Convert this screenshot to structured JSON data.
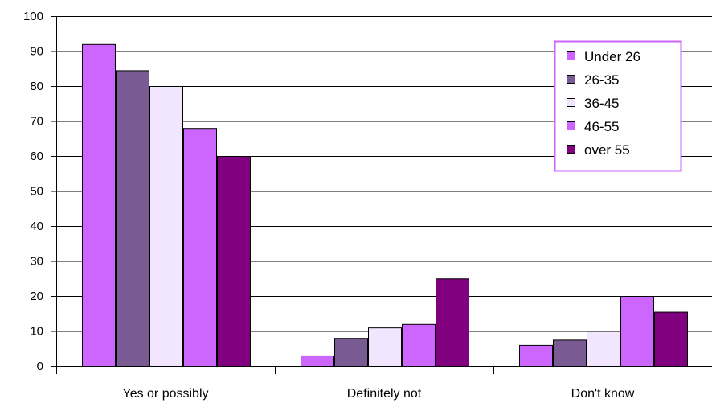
{
  "chart_data": {
    "type": "bar",
    "title": "",
    "xlabel": "",
    "ylabel": "",
    "categories": [
      "Yes or possibly",
      "Definitely not",
      "Don't know"
    ],
    "ylim": [
      0,
      100
    ],
    "yticks": [
      "0",
      "10",
      "20",
      "30",
      "40",
      "50",
      "60",
      "70",
      "80",
      "90",
      "100"
    ],
    "grid": true,
    "legend_position": "top-right",
    "series": [
      {
        "name": "Under 26",
        "values": [
          92,
          3,
          6
        ],
        "color": "#cc66ff"
      },
      {
        "name": "26-35",
        "values": [
          84.5,
          8,
          7.5
        ],
        "color": "#7a5a92"
      },
      {
        "name": "36-45",
        "values": [
          80,
          11,
          10
        ],
        "color": "#f2e6ff"
      },
      {
        "name": "46-55",
        "values": [
          68,
          12,
          20
        ],
        "color": "#cc66ff"
      },
      {
        "name": "over 55",
        "values": [
          60,
          25,
          15.5
        ],
        "color": "#800080"
      }
    ],
    "colors": {
      "legend_border": "#cc66ff",
      "bar_outline": "#000000",
      "gridline": "#000000"
    }
  }
}
